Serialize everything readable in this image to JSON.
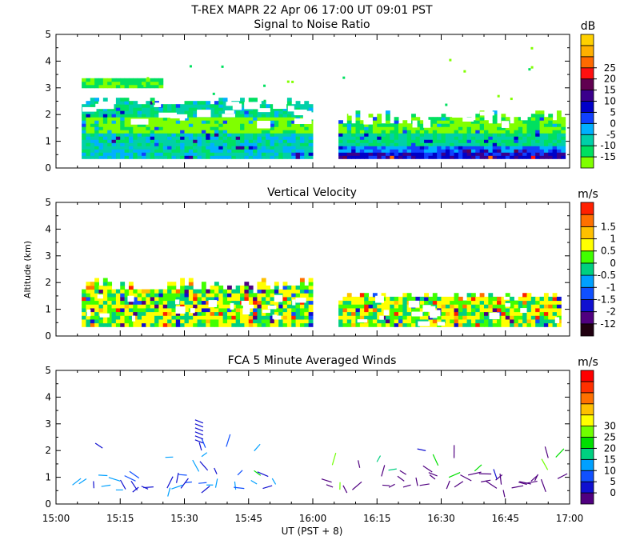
{
  "figure": {
    "title": "T-REX  MAPR 22 Apr 06  17:00 UT  09:01  PST",
    "xlabel": "UT  (PST + 8)",
    "ylabel": "Altitude (km)",
    "x_ticks": [
      "15:00",
      "15:15",
      "15:30",
      "15:45",
      "16:00",
      "16:15",
      "16:30",
      "16:45",
      "17:00"
    ]
  },
  "chart_data": [
    {
      "type": "heatmap",
      "title": "Signal to Noise Ratio",
      "units": "dB",
      "x_range_minutes": [
        0,
        120
      ],
      "ylim": [
        0,
        5
      ],
      "y_ticks": [
        "0",
        "1",
        "2",
        "3",
        "4",
        "5"
      ],
      "colorbar_ticks": [
        "-15",
        "-10",
        "-5",
        "0",
        "5",
        "10",
        "15",
        "20",
        "25"
      ],
      "colors": [
        "#80ff00",
        "#00e060",
        "#00d0a8",
        "#00b0ff",
        "#1040ff",
        "#0000c8",
        "#3a008c",
        "#600050",
        "#ff1010",
        "#ff6a00",
        "#ffb000",
        "#ffd000"
      ],
      "data_gap_minutes": [
        0.0,
        0.0
      ]
    },
    {
      "type": "heatmap",
      "title": "Vertical Velocity",
      "units": "m/s",
      "x_range_minutes": [
        0,
        120
      ],
      "ylim": [
        0,
        5
      ],
      "y_ticks": [
        "0",
        "1",
        "2",
        "3",
        "4",
        "5"
      ],
      "colorbar_ticks": [
        "-12",
        "-2",
        "-1.5",
        "-1",
        "-0.5",
        "0",
        "0.5",
        "1",
        "1.5"
      ],
      "colors": [
        "#200010",
        "#500080",
        "#1010d0",
        "#1050ff",
        "#00a0ff",
        "#00d080",
        "#40ff00",
        "#ffff00",
        "#ffc000",
        "#ff7000",
        "#ff2000"
      ]
    },
    {
      "type": "scatter",
      "title": "FCA 5 Minute Averaged Winds",
      "units": "m/s",
      "x_range_minutes": [
        0,
        120
      ],
      "ylim": [
        0,
        5
      ],
      "y_ticks": [
        "0",
        "1",
        "2",
        "3",
        "4",
        "5"
      ],
      "colorbar_ticks": [
        "0",
        "5",
        "10",
        "15",
        "20",
        "25",
        "30"
      ],
      "colors": [
        "#500080",
        "#1010d0",
        "#1050ff",
        "#00a0ff",
        "#00d080",
        "#00e000",
        "#70ff00",
        "#ffff00",
        "#ffc000",
        "#ff7000",
        "#ff3000",
        "#ff0000"
      ]
    }
  ]
}
